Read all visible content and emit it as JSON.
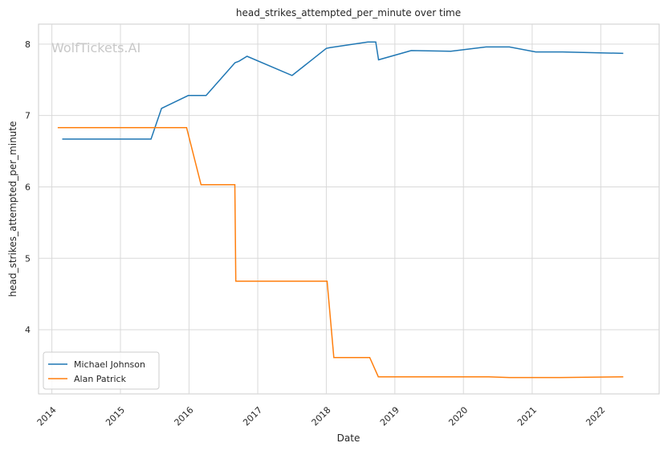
{
  "chart_data": {
    "type": "line",
    "title": "head_strikes_attempted_per_minute over time",
    "xlabel": "Date",
    "ylabel": "head_strikes_attempted_per_minute",
    "watermark": "WolfTickets.AI",
    "x_ticks": [
      "2014",
      "2015",
      "2016",
      "2017",
      "2018",
      "2019",
      "2020",
      "2021",
      "2022"
    ],
    "y_ticks": [
      4,
      5,
      6,
      7,
      8
    ],
    "xlim": [
      "2013-10-22",
      "2022-11-08"
    ],
    "ylim": [
      3.1,
      8.28
    ],
    "grid": true,
    "legend_position": "lower-left",
    "series": [
      {
        "name": "Michael Johnson",
        "color": "#1f77b4",
        "points": [
          [
            "2014-02-25",
            6.67
          ],
          [
            "2015-06-13",
            6.67
          ],
          [
            "2015-08-08",
            7.1
          ],
          [
            "2015-12-28",
            7.28
          ],
          [
            "2016-04-01",
            7.28
          ],
          [
            "2016-09-02",
            7.74
          ],
          [
            "2016-09-23",
            7.76
          ],
          [
            "2016-11-05",
            7.83
          ],
          [
            "2017-07-03",
            7.56
          ],
          [
            "2018-01-01",
            7.94
          ],
          [
            "2018-01-20",
            7.95
          ],
          [
            "2018-08-10",
            8.03
          ],
          [
            "2018-09-21",
            8.03
          ],
          [
            "2018-10-06",
            7.78
          ],
          [
            "2019-03-29",
            7.91
          ],
          [
            "2019-10-26",
            7.9
          ],
          [
            "2020-05-01",
            7.96
          ],
          [
            "2020-09-02",
            7.96
          ],
          [
            "2021-01-20",
            7.89
          ],
          [
            "2021-06-12",
            7.89
          ],
          [
            "2022-05-01",
            7.87
          ]
        ]
      },
      {
        "name": "Alan Patrick",
        "color": "#ff7f0e",
        "points": [
          [
            "2014-02-01",
            6.83
          ],
          [
            "2015-12-19",
            6.83
          ],
          [
            "2016-03-05",
            6.03
          ],
          [
            "2016-09-01",
            6.03
          ],
          [
            "2016-09-06",
            4.68
          ],
          [
            "2018-01-05",
            4.68
          ],
          [
            "2018-02-10",
            3.61
          ],
          [
            "2018-08-20",
            3.61
          ],
          [
            "2018-10-05",
            3.34
          ],
          [
            "2020-05-15",
            3.34
          ],
          [
            "2020-09-01",
            3.33
          ],
          [
            "2021-06-01",
            3.33
          ],
          [
            "2022-05-01",
            3.34
          ]
        ]
      }
    ]
  }
}
